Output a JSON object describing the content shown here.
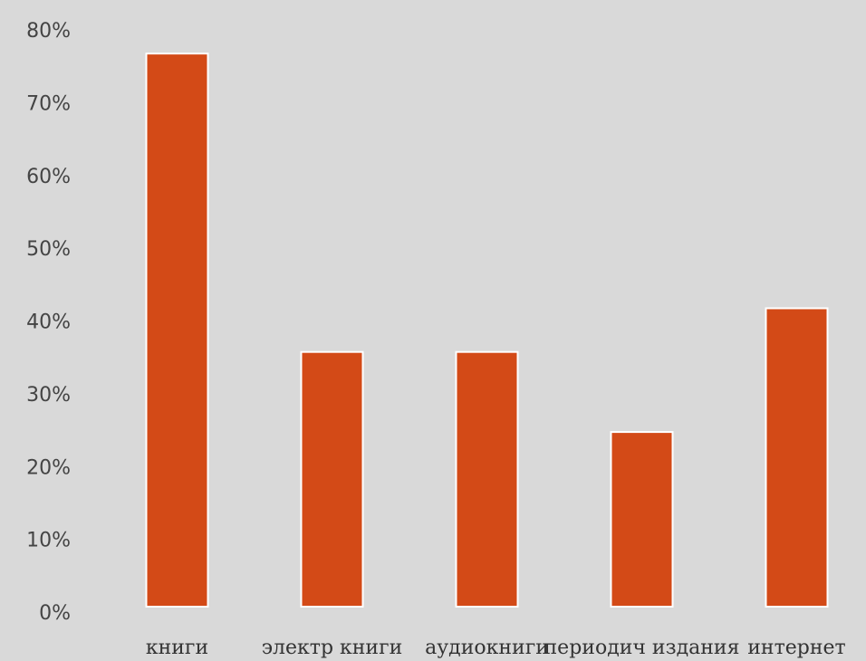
{
  "chart_data": {
    "type": "bar",
    "categories": [
      "книги",
      "электр книги",
      "аудиокниги",
      "периодич издания",
      "интернет"
    ],
    "values": [
      76,
      35,
      35,
      24,
      41
    ],
    "color": "#d34a17",
    "ylim": [
      0,
      80
    ],
    "yticks": [
      {
        "value": 0,
        "label": "0%"
      },
      {
        "value": 10,
        "label": "10%"
      },
      {
        "value": 20,
        "label": "20%"
      },
      {
        "value": 30,
        "label": "30%"
      },
      {
        "value": 40,
        "label": "40%"
      },
      {
        "value": 50,
        "label": "50%"
      },
      {
        "value": 60,
        "label": "60%"
      },
      {
        "value": 70,
        "label": "70%"
      },
      {
        "value": 80,
        "label": "80%"
      }
    ],
    "grid": false
  }
}
